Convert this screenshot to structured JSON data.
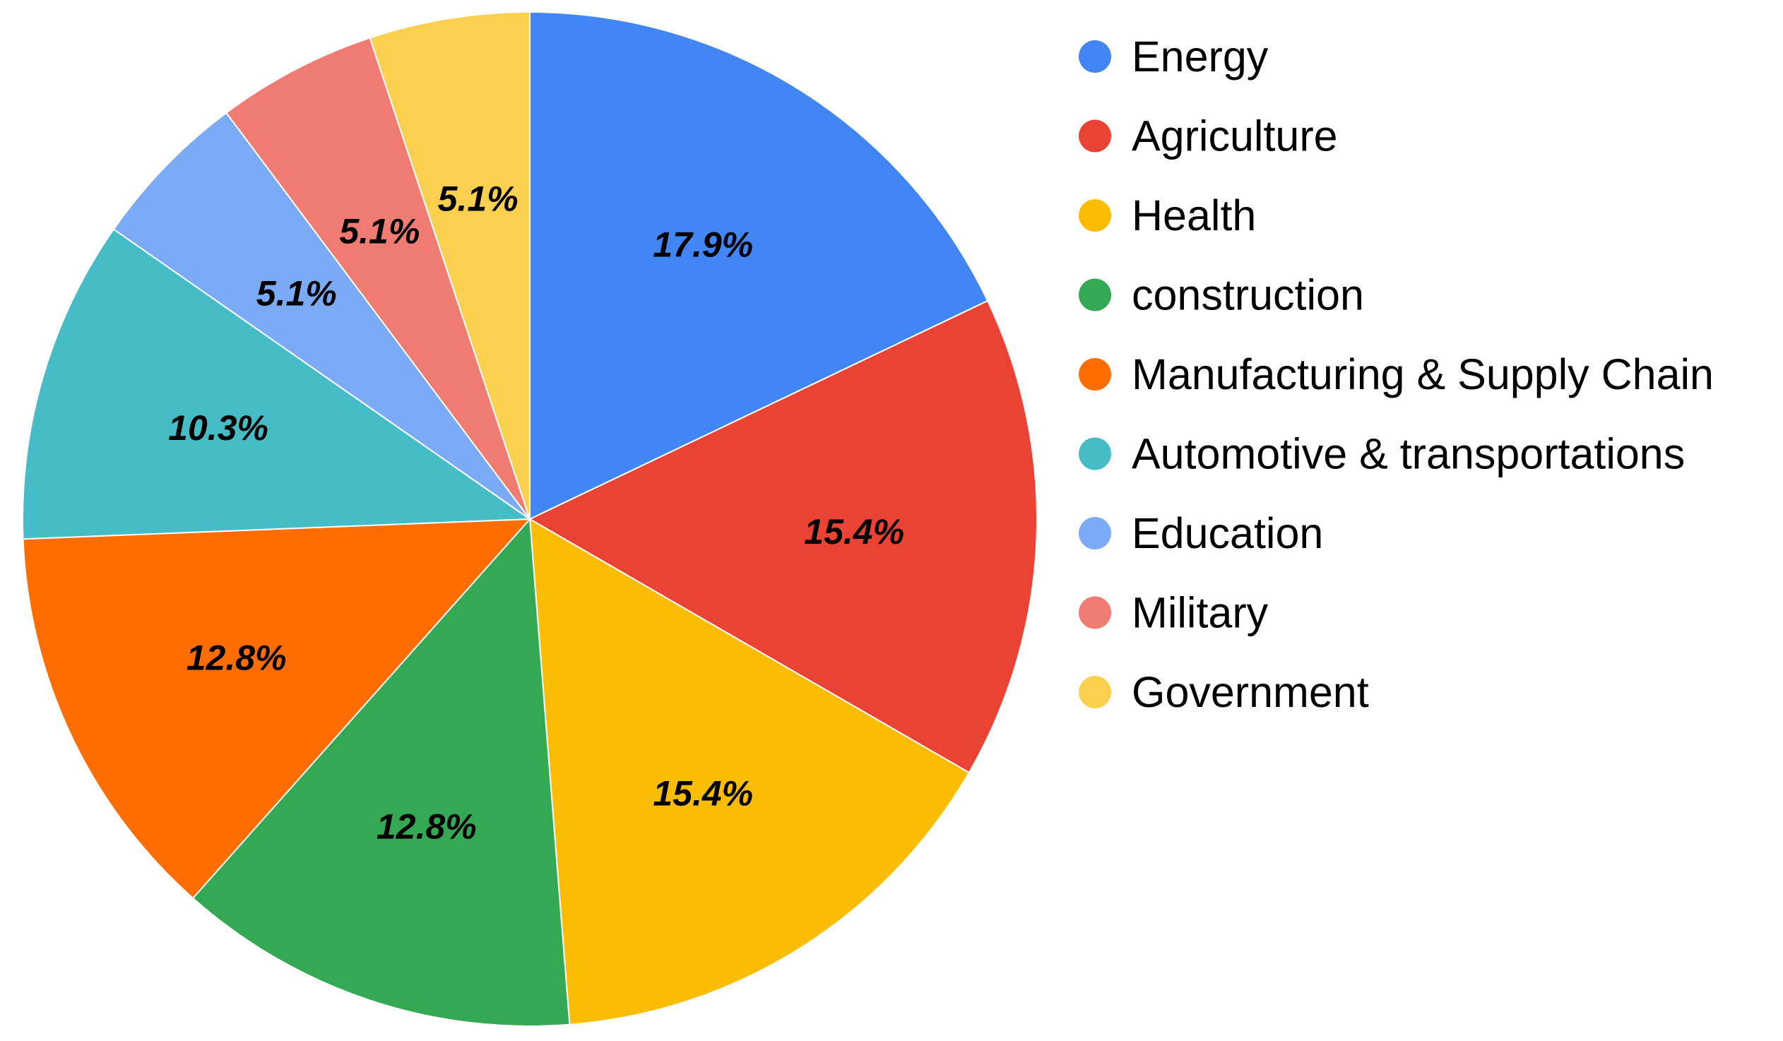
{
  "chart_data": {
    "type": "pie",
    "title": "",
    "legend_position": "right",
    "slices": [
      {
        "name": "Energy",
        "value": 17.9,
        "label": "17.9%",
        "color": "#4285F4"
      },
      {
        "name": "Agriculture",
        "value": 15.4,
        "label": "15.4%",
        "color": "#EA4335"
      },
      {
        "name": "Health",
        "value": 15.4,
        "label": "15.4%",
        "color": "#FBBC04"
      },
      {
        "name": "construction",
        "value": 12.8,
        "label": "12.8%",
        "color": "#34A853"
      },
      {
        "name": "Manufacturing & Supply Chain",
        "value": 12.8,
        "label": "12.8%",
        "color": "#FF6D01"
      },
      {
        "name": "Automotive & transportations",
        "value": 10.3,
        "label": "10.3%",
        "color": "#46BDC6"
      },
      {
        "name": "Education",
        "value": 5.1,
        "label": "5.1%",
        "color": "#7BAAF7"
      },
      {
        "name": "Military",
        "value": 5.1,
        "label": "5.1%",
        "color": "#F07B72"
      },
      {
        "name": "Government",
        "value": 5.1,
        "label": "5.1%",
        "color": "#FCD04F"
      }
    ]
  }
}
